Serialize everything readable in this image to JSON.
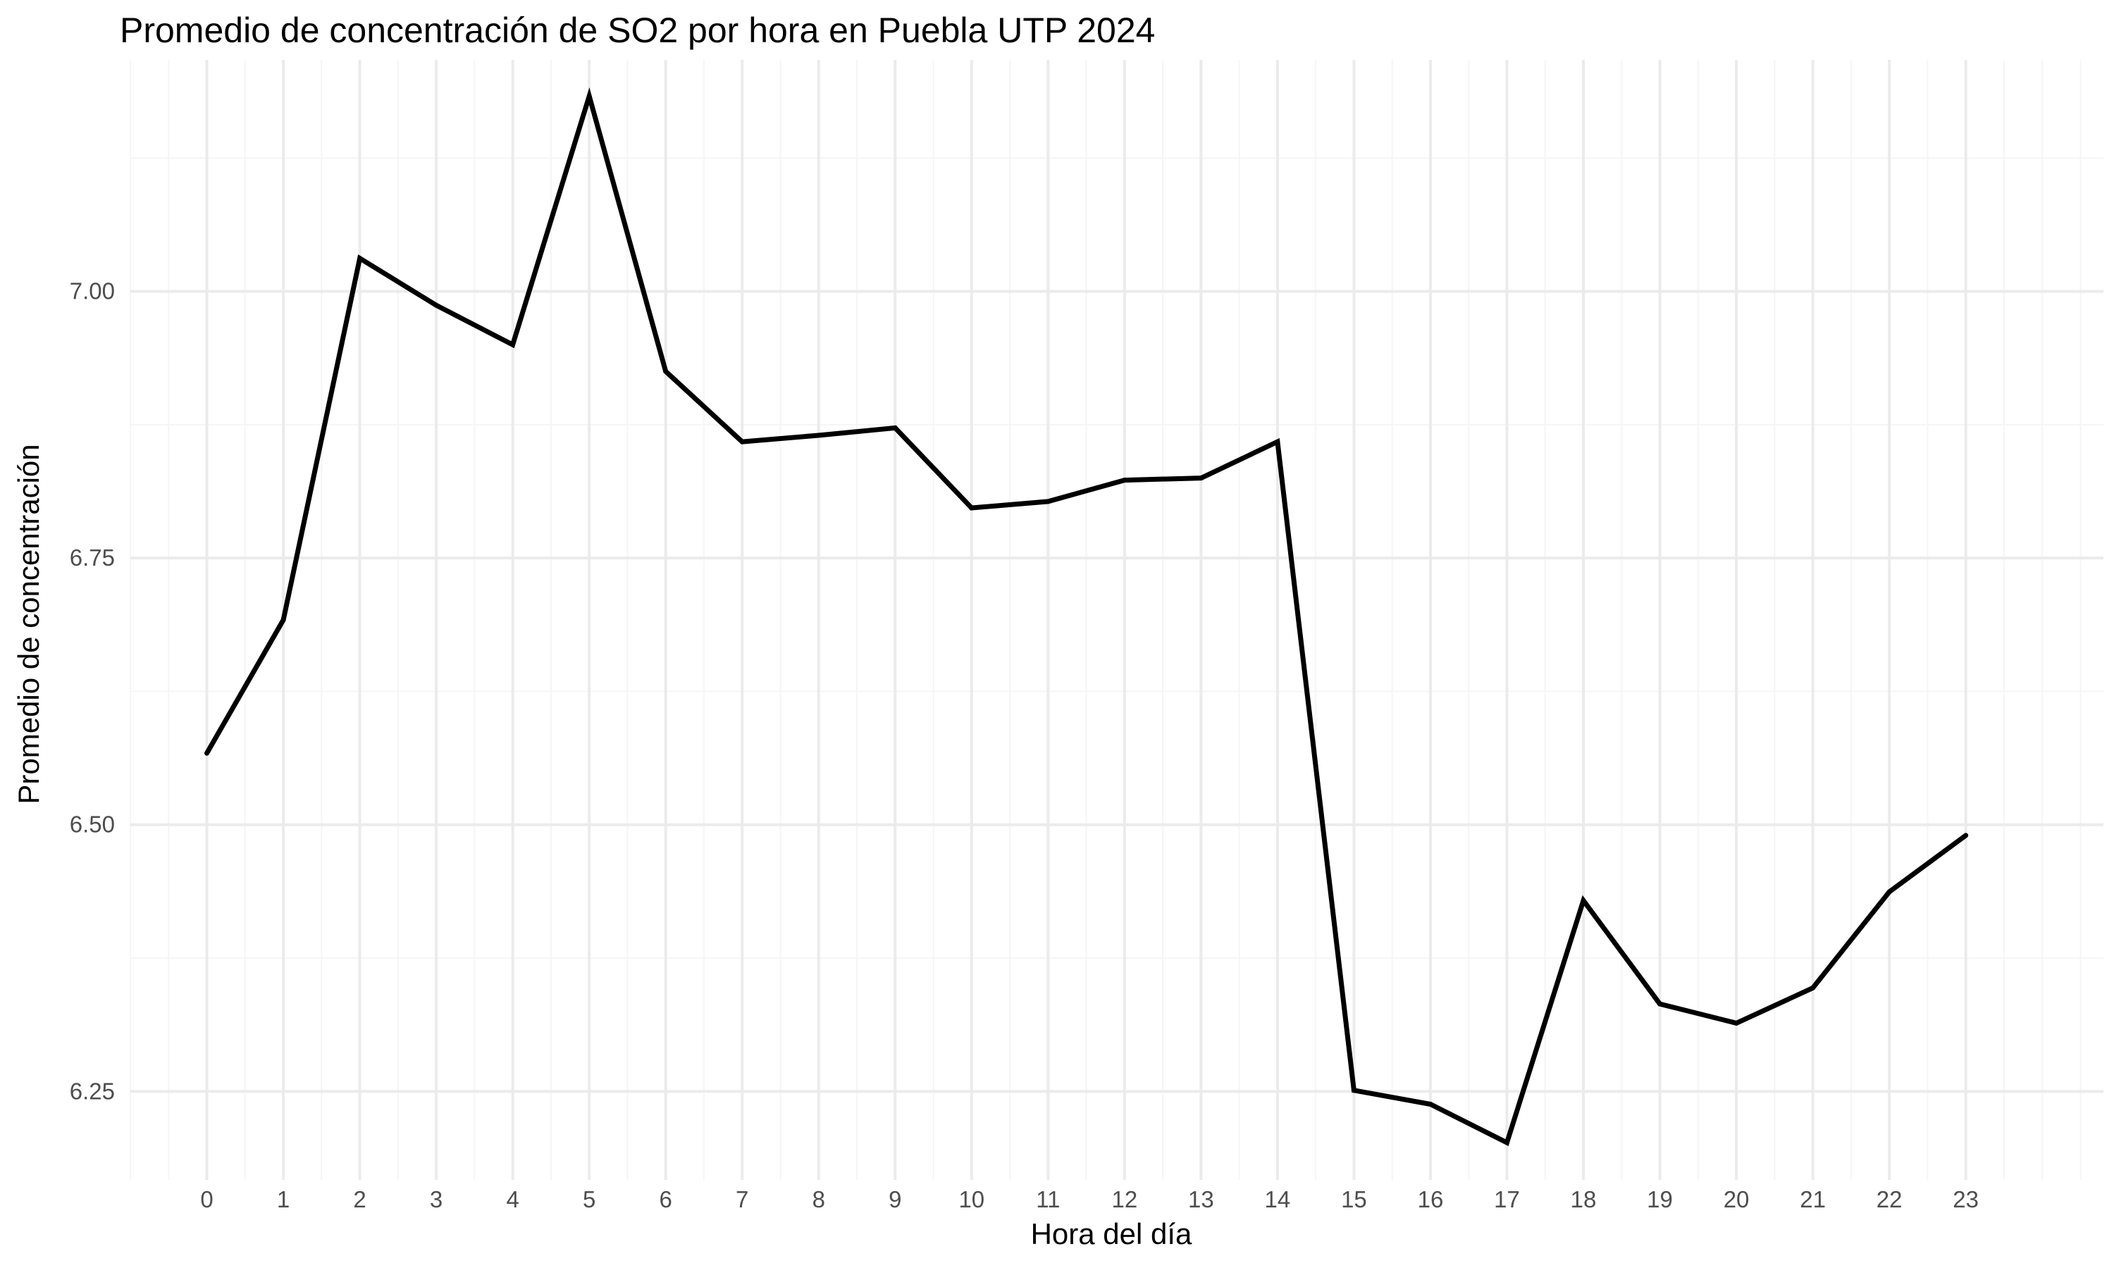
{
  "chart_data": {
    "type": "line",
    "title": "Promedio de concentración de SO2 por hora en Puebla UTP 2024",
    "xlabel": "Hora del día",
    "ylabel": "Promedio de concentración",
    "x": [
      0,
      1,
      2,
      3,
      4,
      5,
      6,
      7,
      8,
      9,
      10,
      11,
      12,
      13,
      14,
      15,
      16,
      17,
      18,
      19,
      20,
      21,
      22,
      23
    ],
    "x_tick_labels": [
      "0",
      "1",
      "2",
      "3",
      "4",
      "5",
      "6",
      "7",
      "8",
      "9",
      "10",
      "11",
      "12",
      "13",
      "14",
      "15",
      "16",
      "17",
      "18",
      "19",
      "20",
      "21",
      "22",
      "23"
    ],
    "series": [
      {
        "values": [
          6.567,
          6.692,
          7.031,
          6.987,
          6.95,
          7.183,
          6.925,
          6.859,
          6.865,
          6.872,
          6.797,
          6.803,
          6.823,
          6.825,
          6.859,
          6.251,
          6.238,
          6.202,
          6.429,
          6.332,
          6.314,
          6.347,
          6.437,
          6.49
        ],
        "color": "#000000"
      }
    ],
    "y_ticks": [
      6.25,
      6.5,
      6.75,
      7.0
    ],
    "y_tick_labels": [
      "6.25",
      "6.50",
      "6.75",
      "7.00"
    ],
    "xlim": [
      -1.0,
      24.8
    ],
    "ylim": [
      6.167,
      7.217
    ],
    "grid": true,
    "legend": "none",
    "colors": {
      "line": "#000000",
      "grid_major": "#ebebeb",
      "grid_minor": "#f5f5f5",
      "tick_text": "#4d4d4d",
      "background": "#ffffff"
    }
  }
}
